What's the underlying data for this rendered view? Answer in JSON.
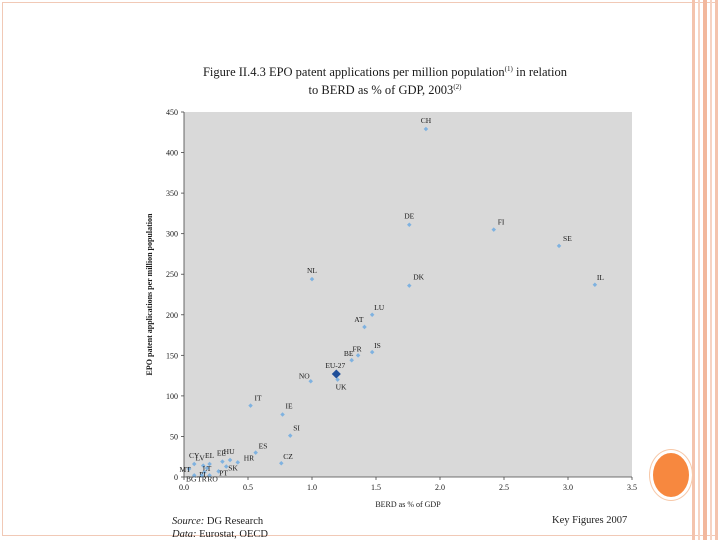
{
  "title": {
    "line1_prefix": "Figure II.4.3 EPO patent applications per million population",
    "line1_sup": "(1)",
    "line1_suffix": " in relation",
    "line2_prefix": "to BERD as % of GDP, 2003",
    "line2_sup": "(2)"
  },
  "footer": {
    "source_label": "Source:",
    "source_value": " DG Research",
    "data_label": "Data:",
    "data_value": " Eurostat, OECD",
    "key_figures": "Key Figures 2007"
  },
  "colors": {
    "plot_bg": "#d9d9d9",
    "point": "#7fb2e0",
    "highlight_point": "#1f4e99",
    "accent": "#f7883f"
  },
  "chart_data": {
    "type": "scatter",
    "title": "EPO patent applications per million population in relation to BERD as % of GDP, 2003",
    "xlabel": "BERD as % of GDP",
    "ylabel": "EPO patent applications per million population",
    "xlim": [
      0.0,
      3.5
    ],
    "ylim": [
      0,
      450
    ],
    "xticks": [
      "0.0",
      "0.5",
      "1.0",
      "1.5",
      "2.0",
      "2.5",
      "3.0",
      "3.5"
    ],
    "yticks": [
      "0",
      "50",
      "100",
      "150",
      "200",
      "250",
      "300",
      "350",
      "400",
      "450"
    ],
    "grid": false,
    "points": [
      {
        "label": "CH",
        "x": 1.89,
        "y": 429
      },
      {
        "label": "DE",
        "x": 1.76,
        "y": 311
      },
      {
        "label": "FI",
        "x": 2.42,
        "y": 305
      },
      {
        "label": "SE",
        "x": 2.93,
        "y": 285
      },
      {
        "label": "IL",
        "x": 3.21,
        "y": 237
      },
      {
        "label": "NL",
        "x": 1.0,
        "y": 244
      },
      {
        "label": "DK",
        "x": 1.76,
        "y": 236
      },
      {
        "label": "LU",
        "x": 1.47,
        "y": 200
      },
      {
        "label": "AT",
        "x": 1.41,
        "y": 185
      },
      {
        "label": "IS",
        "x": 1.47,
        "y": 154
      },
      {
        "label": "FR",
        "x": 1.36,
        "y": 150
      },
      {
        "label": "BE",
        "x": 1.31,
        "y": 144
      },
      {
        "label": "EU-27",
        "x": 1.19,
        "y": 127,
        "highlight": true
      },
      {
        "label": "NO",
        "x": 0.99,
        "y": 118
      },
      {
        "label": "UK",
        "x": 1.2,
        "y": 120
      },
      {
        "label": "IT",
        "x": 0.52,
        "y": 88
      },
      {
        "label": "IE",
        "x": 0.77,
        "y": 77
      },
      {
        "label": "SI",
        "x": 0.83,
        "y": 51
      },
      {
        "label": "ES",
        "x": 0.56,
        "y": 30
      },
      {
        "label": "CZ",
        "x": 0.76,
        "y": 17
      },
      {
        "label": "HU",
        "x": 0.36,
        "y": 21
      },
      {
        "label": "HR",
        "x": 0.42,
        "y": 18
      },
      {
        "label": "EE",
        "x": 0.3,
        "y": 19
      },
      {
        "label": "EL",
        "x": 0.2,
        "y": 16
      },
      {
        "label": "LV",
        "x": 0.15,
        "y": 14
      },
      {
        "label": "CY",
        "x": 0.08,
        "y": 16
      },
      {
        "label": "MT",
        "x": 0.04,
        "y": 10
      },
      {
        "label": "LT",
        "x": 0.18,
        "y": 11
      },
      {
        "label": "SK",
        "x": 0.33,
        "y": 13
      },
      {
        "label": "PL",
        "x": 0.16,
        "y": 6
      },
      {
        "label": "PT",
        "x": 0.27,
        "y": 7
      },
      {
        "label": "BG",
        "x": 0.08,
        "y": 2
      },
      {
        "label": "TR",
        "x": 0.14,
        "y": 2
      },
      {
        "label": "RO",
        "x": 0.2,
        "y": 2
      }
    ]
  }
}
